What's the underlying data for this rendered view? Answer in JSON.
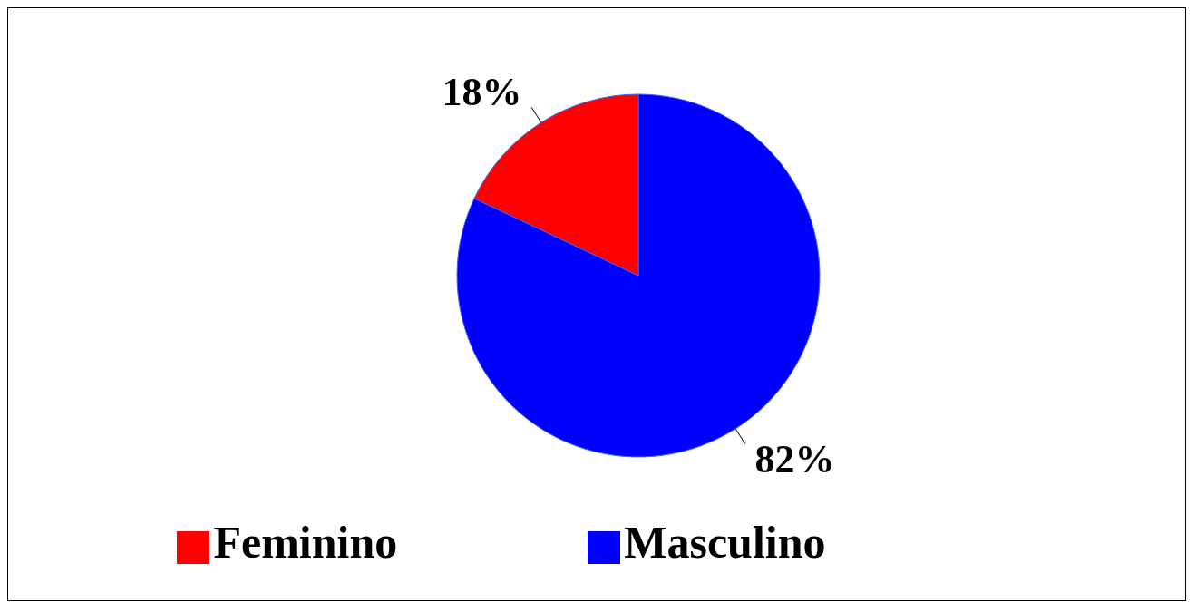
{
  "chart_data": {
    "type": "pie",
    "categories": [
      "Masculino",
      "Feminino"
    ],
    "values": [
      82,
      18
    ],
    "colors": [
      "#0000ff",
      "#ff0000"
    ],
    "value_labels": [
      "82%",
      "18%"
    ],
    "legend": "bottom"
  }
}
